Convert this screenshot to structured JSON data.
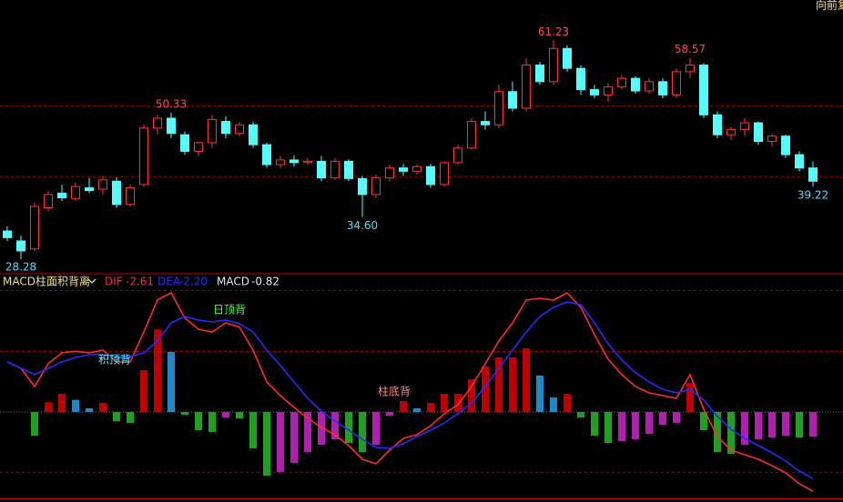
{
  "chart_data": [
    {
      "type": "candlestick",
      "label": "向前复",
      "ylim": [
        26.2,
        67.3
      ],
      "yticks": [
        40.7,
        51.3
      ],
      "grid": true,
      "up_color": "#ff3232",
      "down_color": "#54fcfc",
      "open": [
        32.5,
        31.0,
        29.8,
        36.0,
        38.2,
        37.4,
        39.0,
        38.8,
        40.0,
        36.5,
        39.5,
        48.0,
        49.5,
        47.0,
        44.5,
        45.8,
        49.0,
        47.2,
        48.5,
        45.5,
        42.5,
        43.2,
        42.8,
        43.0,
        40.5,
        43.0,
        40.4,
        38.0,
        40.5,
        42.0,
        41.5,
        42.2,
        39.5,
        42.8,
        45.0,
        49.0,
        48.5,
        53.5,
        51.0,
        57.5,
        55.0,
        60.0,
        57.0,
        53.8,
        53.0,
        54.2,
        55.5,
        53.6,
        55.0,
        53.0,
        56.5,
        57.5,
        50.0,
        47.0,
        47.8,
        48.8,
        46.0,
        46.8,
        44.0,
        42.0
      ],
      "high": [
        33.2,
        31.8,
        36.8,
        38.5,
        39.5,
        39.8,
        40.5,
        40.8,
        40.6,
        39.5,
        48.5,
        50.0,
        50.33,
        47.5,
        46.0,
        50.0,
        49.8,
        49.0,
        49.0,
        45.8,
        43.8,
        43.9,
        43.5,
        43.8,
        43.5,
        43.3,
        40.8,
        41.0,
        42.5,
        42.6,
        42.5,
        42.6,
        43.0,
        45.5,
        49.5,
        50.5,
        54.5,
        55.0,
        58.5,
        58.0,
        61.23,
        60.5,
        57.5,
        54.5,
        54.8,
        56.0,
        55.8,
        55.5,
        55.5,
        57.0,
        58.57,
        57.8,
        50.5,
        48.2,
        49.5,
        49.0,
        47.2,
        47.0,
        44.5,
        43.0
      ],
      "low": [
        31.0,
        28.28,
        29.5,
        35.5,
        37.0,
        37.0,
        38.2,
        38.0,
        36.0,
        36.2,
        39.2,
        47.0,
        46.5,
        44.0,
        43.8,
        45.0,
        46.5,
        46.8,
        45.0,
        42.0,
        42.0,
        42.2,
        42.5,
        40.0,
        40.2,
        40.0,
        34.6,
        37.5,
        40.0,
        40.8,
        41.0,
        39.0,
        39.2,
        42.5,
        44.8,
        47.8,
        48.0,
        50.5,
        50.5,
        54.5,
        54.5,
        56.5,
        53.0,
        52.5,
        52.0,
        53.8,
        53.2,
        53.2,
        52.5,
        52.5,
        55.5,
        49.5,
        46.5,
        46.2,
        46.8,
        45.5,
        45.2,
        43.5,
        41.5,
        39.22
      ],
      "close": [
        31.5,
        29.5,
        36.2,
        38.0,
        37.5,
        39.2,
        38.6,
        40.2,
        36.5,
        39.0,
        48.0,
        49.5,
        47.2,
        44.5,
        45.8,
        49.3,
        47.2,
        48.5,
        45.5,
        42.5,
        43.2,
        42.8,
        43.0,
        40.5,
        43.0,
        40.4,
        38.0,
        40.5,
        42.0,
        41.5,
        42.2,
        39.5,
        42.8,
        45.0,
        49.0,
        48.5,
        53.5,
        51.0,
        57.5,
        55.0,
        60.0,
        57.0,
        53.8,
        53.0,
        54.2,
        55.5,
        53.6,
        55.0,
        53.0,
        56.5,
        57.5,
        50.0,
        47.0,
        47.8,
        48.8,
        46.0,
        46.8,
        44.0,
        42.0,
        40.0
      ],
      "value_labels": {
        "high": {
          "12": "50.33",
          "40": "61.23",
          "50": "58.57"
        },
        "low": {
          "1": "28.28",
          "26": "34.60",
          "59": "39.22"
        }
      },
      "high_label_color": "#ff4848",
      "low_label_color": "#54dcfc"
    },
    {
      "type": "macd",
      "title": "MACD柱面积背离",
      "ylim": [
        -2.85,
        4.53
      ],
      "yticks": [
        -2,
        0,
        2,
        4
      ],
      "grid": true,
      "series": [
        {
          "name": "DIF",
          "color": "#ff2a2a",
          "values": [
            1.65,
            1.44,
            0.84,
            1.6,
            1.95,
            2.0,
            1.95,
            2.04,
            1.65,
            1.65,
            2.64,
            3.7,
            3.93,
            3.1,
            2.73,
            2.64,
            2.94,
            2.8,
            2.04,
            0.99,
            0.54,
            0.15,
            -0.21,
            -0.51,
            -0.75,
            -1.11,
            -1.56,
            -1.71,
            -1.26,
            -0.87,
            -0.75,
            -0.45,
            -0.06,
            0.24,
            0.84,
            1.59,
            2.34,
            2.94,
            3.69,
            3.75,
            3.69,
            3.93,
            3.45,
            2.55,
            1.74,
            1.23,
            0.84,
            0.63,
            0.54,
            0.45,
            1.23,
            0.09,
            -0.81,
            -1.26,
            -1.41,
            -1.56,
            -1.77,
            -2.01,
            -2.37,
            -2.61
          ]
        },
        {
          "name": "DEA",
          "color": "#2a2aff",
          "values": [
            1.65,
            1.44,
            1.23,
            1.44,
            1.65,
            1.8,
            1.89,
            1.89,
            1.8,
            1.83,
            1.95,
            2.34,
            2.94,
            3.15,
            3.03,
            2.97,
            3.03,
            2.91,
            2.64,
            2.04,
            1.53,
            0.99,
            0.45,
            0.03,
            -0.3,
            -0.6,
            -0.9,
            -1.17,
            -1.2,
            -1.05,
            -0.81,
            -0.6,
            -0.36,
            -0.06,
            0.3,
            0.84,
            1.44,
            2.04,
            2.64,
            3.15,
            3.45,
            3.63,
            3.54,
            2.94,
            2.25,
            1.71,
            1.29,
            0.99,
            0.75,
            0.63,
            0.75,
            0.39,
            -0.15,
            -0.57,
            -0.87,
            -1.11,
            -1.35,
            -1.62,
            -1.95,
            -2.2
          ],
          "value_labels": {
            "59": "-2.20"
          }
        },
        {
          "name": "MACD",
          "color": "#e8e8e8",
          "colors": [
            "#c00000",
            "#1e88c8",
            "#20a020",
            "#b020b0"
          ],
          "values": [
            0,
            0,
            -0.78,
            0.32,
            0.6,
            0.4,
            0.12,
            0.3,
            -0.3,
            -0.36,
            1.38,
            2.72,
            1.98,
            -0.1,
            -0.6,
            -0.66,
            -0.18,
            -0.22,
            -1.2,
            -2.1,
            -1.98,
            -1.68,
            -1.32,
            -1.08,
            -0.9,
            -1.02,
            -1.32,
            -1.08,
            -0.12,
            0.36,
            0.12,
            0.3,
            0.6,
            0.6,
            1.08,
            1.5,
            1.8,
            1.8,
            2.1,
            1.2,
            0.48,
            0.6,
            -0.18,
            -0.78,
            -1.02,
            -0.96,
            -0.9,
            -0.72,
            -0.42,
            -0.36,
            0.96,
            -0.6,
            -1.32,
            -1.38,
            -1.08,
            -0.9,
            -0.84,
            -0.78,
            -0.84,
            -0.82
          ]
        }
      ],
      "annotations": [
        {
          "text": "积顶背",
          "color": "#60f0ff"
        },
        {
          "text": "日顶背",
          "color": "#40ff40"
        },
        {
          "text": "柱底背",
          "color": "#ff8880"
        }
      ]
    }
  ]
}
